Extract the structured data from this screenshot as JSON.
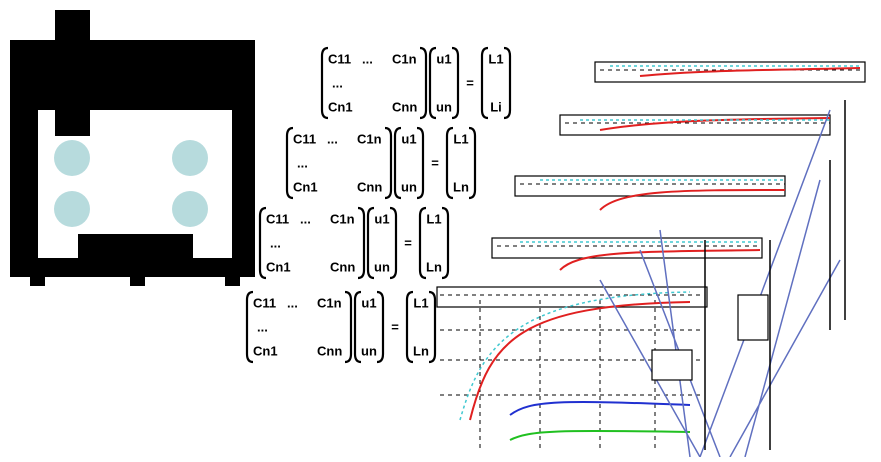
{
  "equations": [
    {
      "matrix": [
        "C11",
        "...",
        "C1n",
        "...",
        "Cn1",
        "Cnn"
      ],
      "vector_u": [
        "u1",
        "un"
      ],
      "equals": "=",
      "vector_l": [
        "L1",
        "Li"
      ]
    },
    {
      "matrix": [
        "C11",
        "...",
        "C1n",
        "...",
        "Cn1",
        "Cnn"
      ],
      "vector_u": [
        "u1",
        "un"
      ],
      "equals": "=",
      "vector_l": [
        "L1",
        "Ln"
      ]
    },
    {
      "matrix": [
        "C11",
        "...",
        "C1n",
        "...",
        "Cn1",
        "Cnn"
      ],
      "vector_u": [
        "u1",
        "un"
      ],
      "equals": "=",
      "vector_l": [
        "L1",
        "Ln"
      ]
    },
    {
      "matrix": [
        "C11",
        "...",
        "C1n",
        "...",
        "Cn1",
        "Cnn"
      ],
      "vector_u": [
        "u1",
        "un"
      ],
      "equals": "=",
      "vector_l": [
        "L1",
        "Ln"
      ]
    }
  ]
}
